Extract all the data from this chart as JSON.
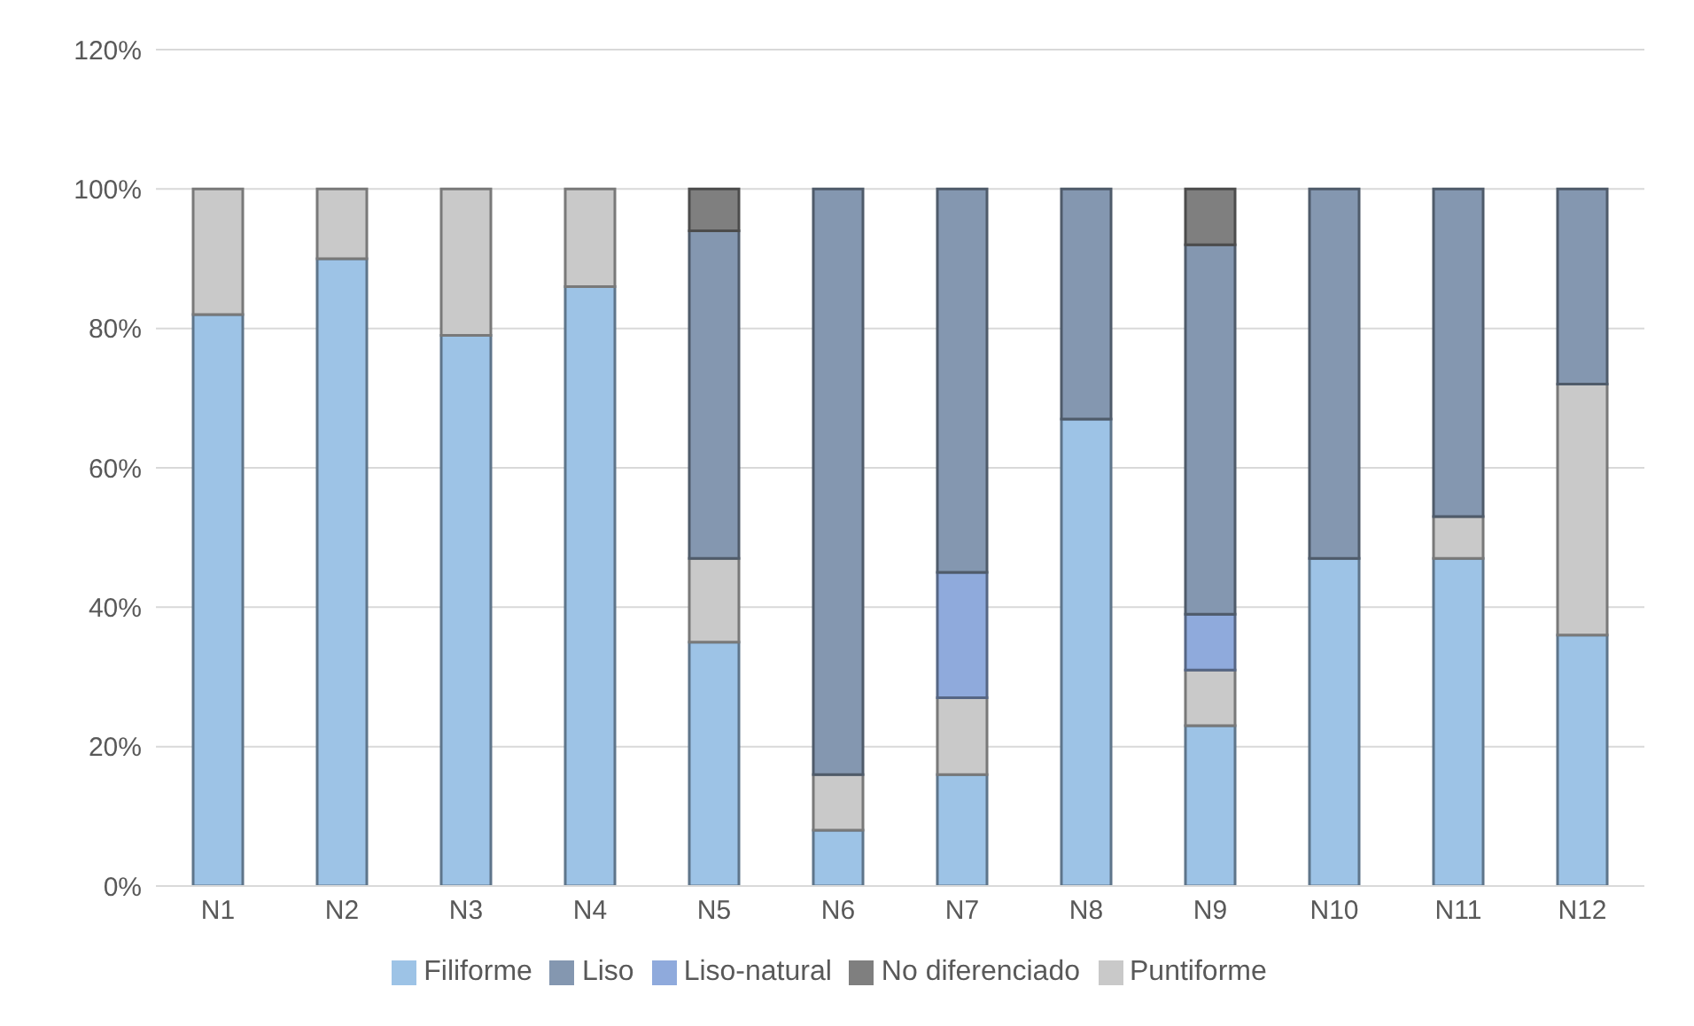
{
  "chart_data": {
    "type": "bar",
    "stacked": true,
    "categories": [
      "N1",
      "N2",
      "N3",
      "N4",
      "N5",
      "N6",
      "N7",
      "N8",
      "N9",
      "N10",
      "N11",
      "N12"
    ],
    "series": [
      {
        "name": "Filiforme",
        "color": "#9dc3e6",
        "values": [
          82,
          90,
          79,
          86,
          35,
          8,
          16,
          67,
          23,
          47,
          47,
          36
        ]
      },
      {
        "name": "Puntiforme",
        "color": "#c9c9c9",
        "values": [
          18,
          10,
          21,
          14,
          12,
          8,
          11,
          0,
          8,
          0,
          6,
          36
        ]
      },
      {
        "name": "Liso-natural",
        "color": "#8faadc",
        "values": [
          0,
          0,
          0,
          0,
          0,
          0,
          18,
          0,
          8,
          0,
          0,
          0
        ]
      },
      {
        "name": "Liso",
        "color": "#8497b0",
        "values": [
          0,
          0,
          0,
          0,
          47,
          84,
          55,
          33,
          53,
          53,
          47,
          28
        ]
      },
      {
        "name": "No diferenciado",
        "color": "#7f7f7f",
        "values": [
          0,
          0,
          0,
          0,
          6,
          0,
          0,
          0,
          8,
          0,
          0,
          0
        ]
      }
    ],
    "ylim": [
      0,
      120
    ],
    "yticks": [
      {
        "value": 0,
        "label": "0%"
      },
      {
        "value": 20,
        "label": "20%"
      },
      {
        "value": 40,
        "label": "40%"
      },
      {
        "value": 60,
        "label": "60%"
      },
      {
        "value": 80,
        "label": "80%"
      },
      {
        "value": 100,
        "label": "100%"
      },
      {
        "value": 120,
        "label": "120%"
      }
    ],
    "grid": "y",
    "legend": "bottom"
  }
}
